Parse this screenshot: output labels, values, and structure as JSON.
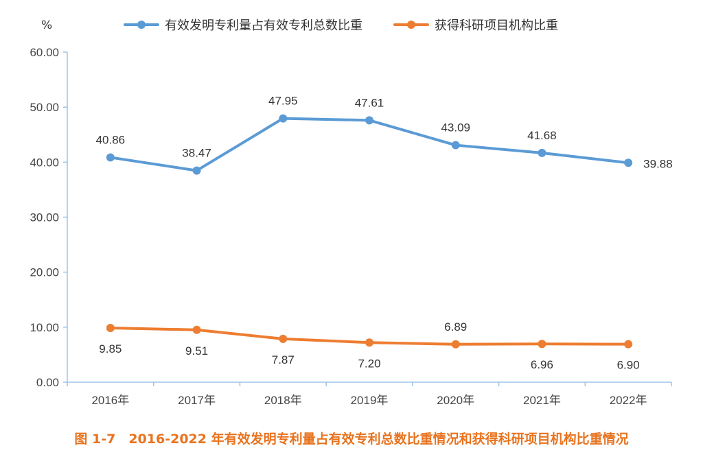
{
  "chart_data": {
    "type": "line",
    "unit_label": "%",
    "categories": [
      "2016年",
      "2017年",
      "2018年",
      "2019年",
      "2020年",
      "2021年",
      "2022年"
    ],
    "ylim": [
      0,
      60
    ],
    "yticks": [
      "0.00",
      "10.00",
      "20.00",
      "30.00",
      "40.00",
      "50.00",
      "60.00"
    ],
    "ytick_values": [
      0,
      10,
      20,
      30,
      40,
      50,
      60
    ],
    "series": [
      {
        "name": "有效发明专利量占有效专利总数比重",
        "color": "#5b9bd5",
        "values": [
          40.86,
          38.47,
          47.95,
          47.61,
          43.09,
          41.68,
          39.88
        ],
        "labels": [
          "40.86",
          "38.47",
          "47.95",
          "47.61",
          "43.09",
          "41.68",
          "39.88"
        ],
        "label_placement": [
          "above",
          "above",
          "above",
          "above",
          "above",
          "above",
          "right"
        ]
      },
      {
        "name": "获得科研项目机构比重",
        "color": "#ed7d31",
        "values": [
          9.85,
          9.51,
          7.87,
          7.2,
          6.89,
          6.96,
          6.9
        ],
        "labels": [
          "9.85",
          "9.51",
          "7.87",
          "7.20",
          "6.89",
          "6.96",
          "6.90"
        ],
        "label_placement": [
          "below",
          "below",
          "below",
          "below",
          "above",
          "below",
          "below"
        ]
      }
    ],
    "grid": false,
    "legend_position": "top",
    "axis_color": "#9dc3e6"
  },
  "caption": "图 1-7　2016-2022 年有效发明专利量占有效专利总数比重情况和获得科研项目机构比重情况",
  "caption_color": "#e8731f"
}
